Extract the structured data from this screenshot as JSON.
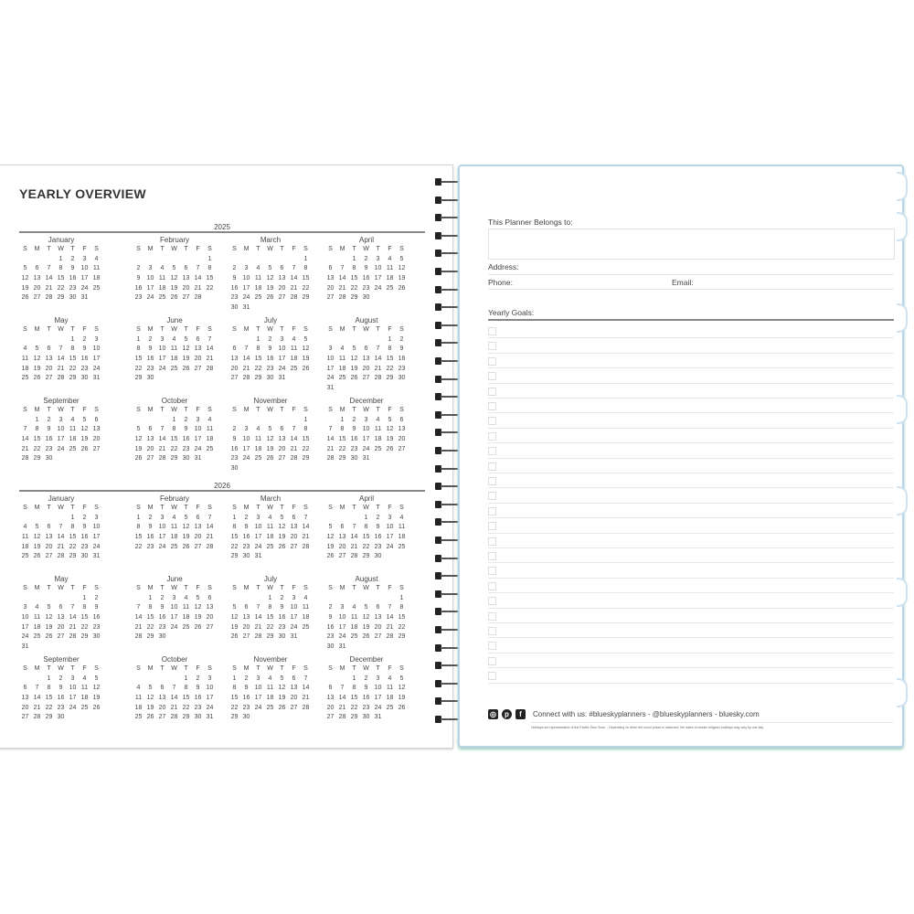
{
  "left_page": {
    "title": "YEARLY OVERVIEW",
    "weekdays": [
      "S",
      "M",
      "T",
      "W",
      "T",
      "F",
      "S"
    ],
    "years": [
      {
        "year": "2025",
        "months": [
          {
            "name": "January",
            "first_weekday": 3,
            "days": 31
          },
          {
            "name": "February",
            "first_weekday": 6,
            "days": 28
          },
          {
            "name": "March",
            "first_weekday": 6,
            "days": 31
          },
          {
            "name": "April",
            "first_weekday": 2,
            "days": 30
          },
          {
            "name": "May",
            "first_weekday": 4,
            "days": 31
          },
          {
            "name": "June",
            "first_weekday": 0,
            "days": 30
          },
          {
            "name": "July",
            "first_weekday": 2,
            "days": 31
          },
          {
            "name": "August",
            "first_weekday": 5,
            "days": 31
          },
          {
            "name": "September",
            "first_weekday": 1,
            "days": 30
          },
          {
            "name": "October",
            "first_weekday": 3,
            "days": 31
          },
          {
            "name": "November",
            "first_weekday": 6,
            "days": 30
          },
          {
            "name": "December",
            "first_weekday": 1,
            "days": 31
          }
        ]
      },
      {
        "year": "2026",
        "months": [
          {
            "name": "January",
            "first_weekday": 4,
            "days": 31
          },
          {
            "name": "February",
            "first_weekday": 0,
            "days": 28
          },
          {
            "name": "March",
            "first_weekday": 0,
            "days": 31
          },
          {
            "name": "April",
            "first_weekday": 3,
            "days": 30
          },
          {
            "name": "May",
            "first_weekday": 5,
            "days": 31
          },
          {
            "name": "June",
            "first_weekday": 1,
            "days": 30
          },
          {
            "name": "July",
            "first_weekday": 3,
            "days": 31
          },
          {
            "name": "August",
            "first_weekday": 6,
            "days": 31
          },
          {
            "name": "September",
            "first_weekday": 2,
            "days": 30
          },
          {
            "name": "October",
            "first_weekday": 4,
            "days": 31
          },
          {
            "name": "November",
            "first_weekday": 0,
            "days": 30
          },
          {
            "name": "December",
            "first_weekday": 2,
            "days": 31
          }
        ]
      }
    ]
  },
  "right_page": {
    "belongs_label": "This Planner Belongs to:",
    "address_label": "Address:",
    "phone_label": "Phone:",
    "email_label": "Email:",
    "goals_label": "Yearly Goals:",
    "goal_rows": 24,
    "social_icons": [
      "instagram-icon",
      "pinterest-icon",
      "facebook-icon"
    ],
    "connect_text": "Connect with us: #blueskyplanners - @blueskyplanners - bluesky.com",
    "footnote": "Holidays are representative of the Pacific Time Zone.  -  Depending on when the moon phase is observed, the dates of certain religious holidays may vary by one day."
  },
  "colors": {
    "accent_border": "#b8d4e8",
    "rule": "#888888"
  }
}
